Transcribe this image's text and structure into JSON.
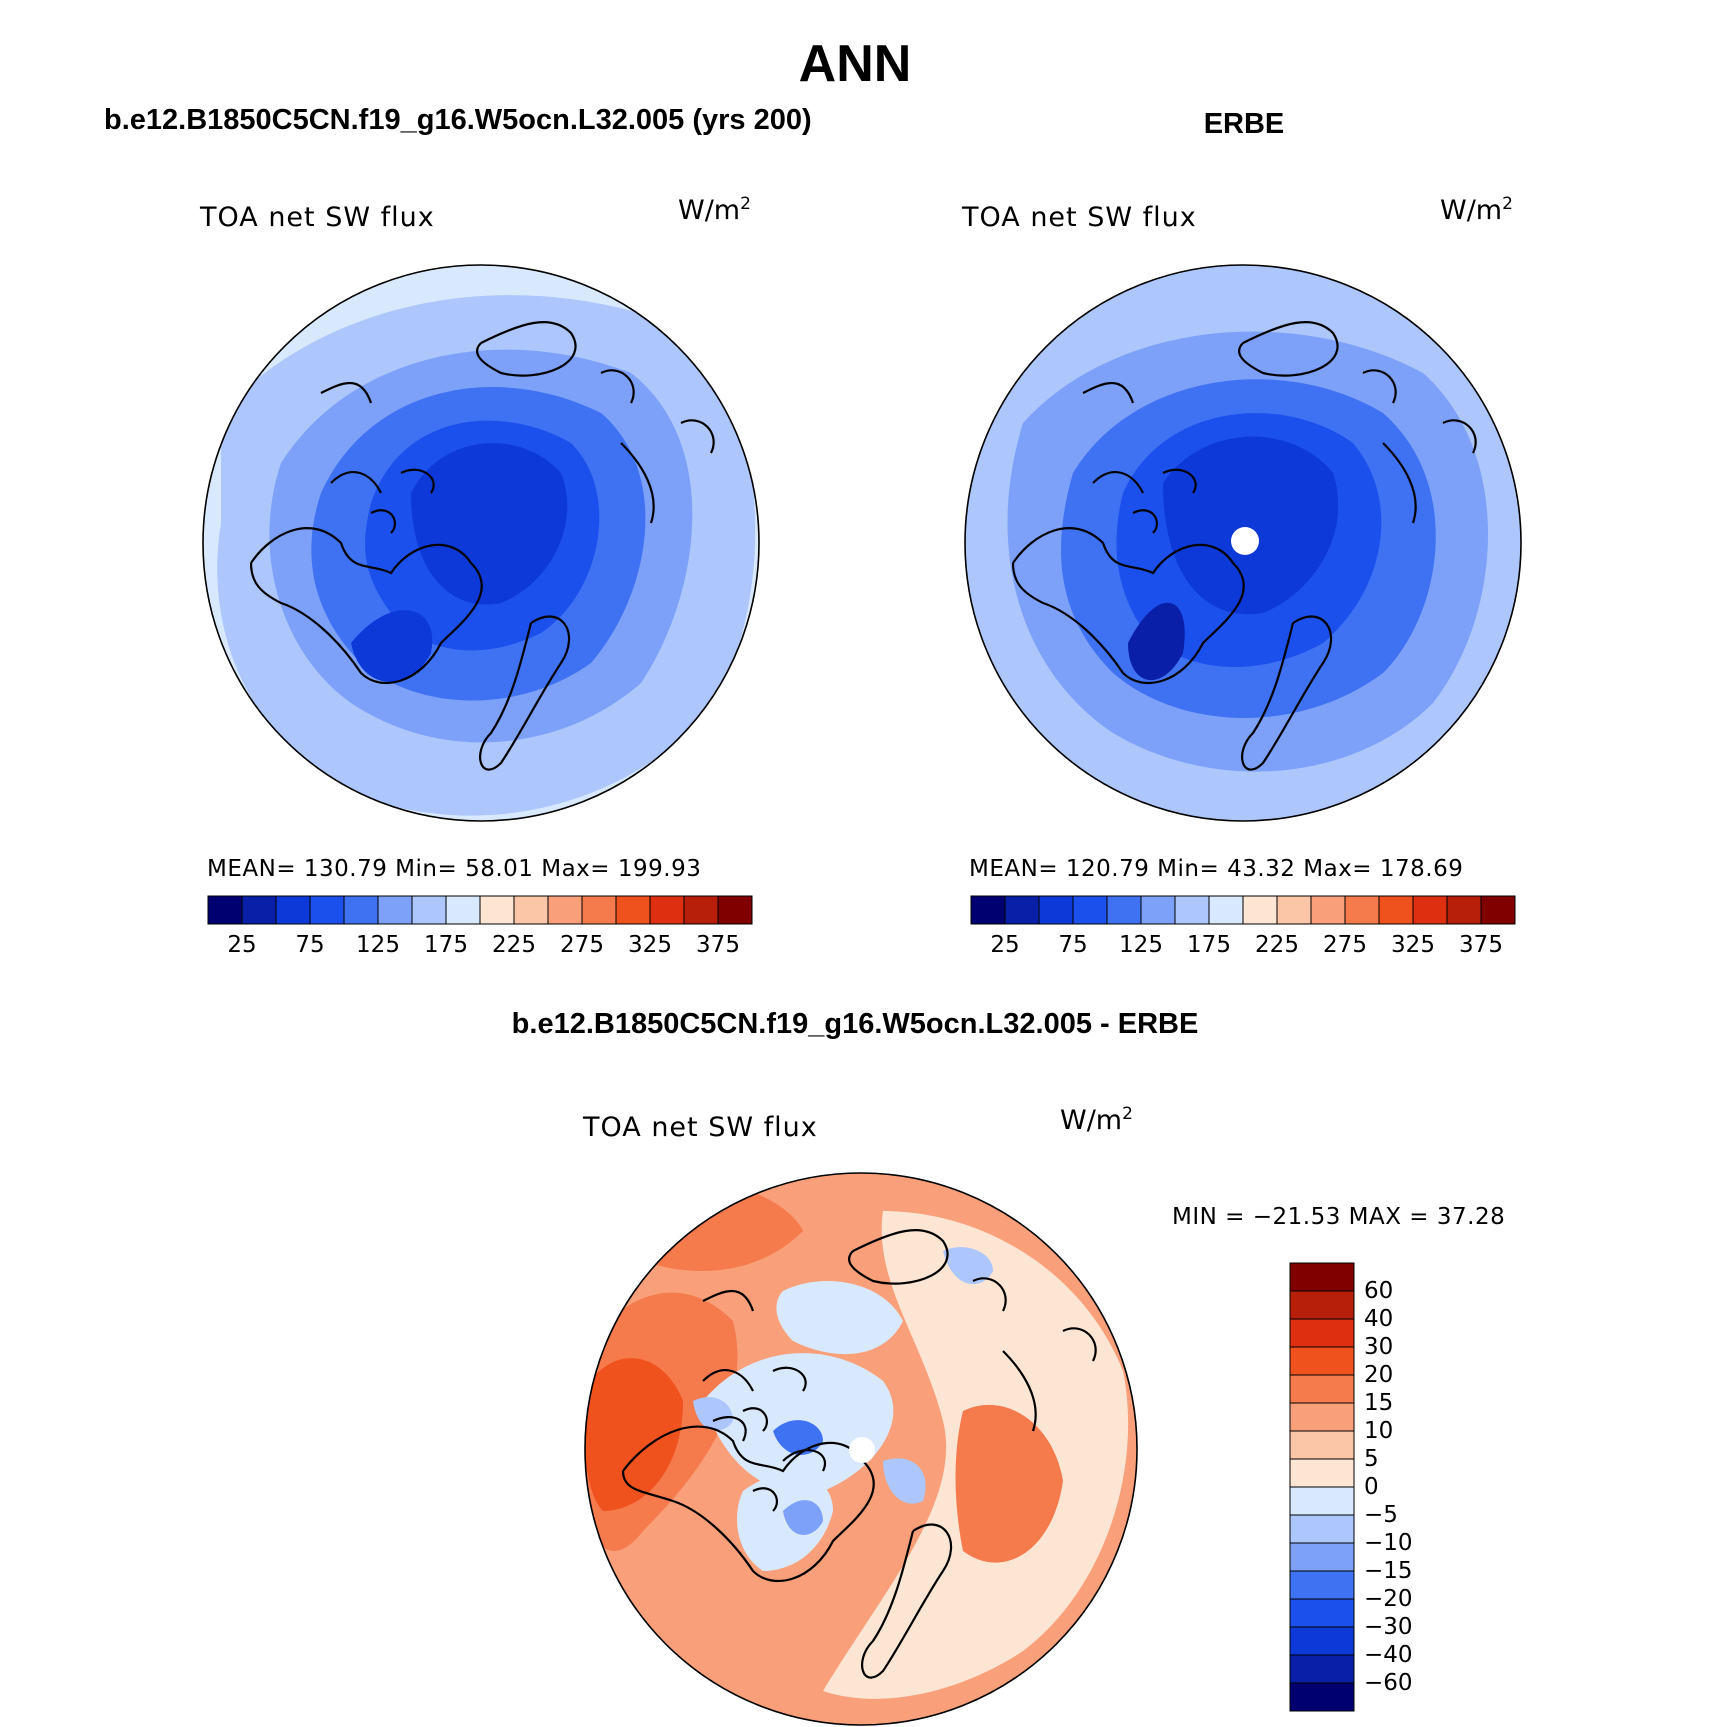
{
  "figure": {
    "title": "ANN",
    "left_panel_title": "b.e12.B1850C5CN.f19_g16.W5ocn.L32.005 (yrs 200)",
    "right_panel_title": "ERBE",
    "diff_panel_title": "b.e12.B1850C5CN.f19_g16.W5ocn.L32.005 - ERBE"
  },
  "panels": {
    "model": {
      "variable": "TOA net SW flux",
      "unit": "W/m",
      "unit_exp": "2",
      "stats": "MEAN= 130.79   Min=   58.01   Max= 199.93"
    },
    "obs": {
      "variable": "TOA net SW flux",
      "unit": "W/m",
      "unit_exp": "2",
      "stats": "MEAN= 120.79   Min=   43.32   Max= 178.69"
    },
    "diff": {
      "variable": "TOA net SW flux",
      "unit": "W/m",
      "unit_exp": "2",
      "stats": "MIN = −21.53 MAX =   37.28"
    }
  },
  "colorbars": {
    "abs_ticks": [
      "25",
      "75",
      "125",
      "175",
      "225",
      "275",
      "325",
      "375"
    ],
    "abs_colors": [
      "#000070",
      "#0a1fa8",
      "#0d39d8",
      "#1c50ec",
      "#3f72f2",
      "#7da1f8",
      "#adc6fb",
      "#d9e9fd",
      "#fde5d4",
      "#fbc5a7",
      "#f9a07a",
      "#f57a4c",
      "#f0521e",
      "#de3010",
      "#b81f0a",
      "#800000"
    ],
    "diff_ticks": [
      "60",
      "40",
      "30",
      "20",
      "15",
      "10",
      "5",
      "0",
      "−5",
      "−10",
      "−15",
      "−20",
      "−30",
      "−40",
      "−60"
    ],
    "diff_colors": [
      "#800000",
      "#b81f0a",
      "#de3010",
      "#f0521e",
      "#f57a4c",
      "#f9a07a",
      "#fbc5a7",
      "#fde5d4",
      "#d9e9fd",
      "#adc6fb",
      "#7da1f8",
      "#3f72f2",
      "#1c50ec",
      "#0d39d8",
      "#0a1fa8",
      "#000070"
    ]
  }
}
